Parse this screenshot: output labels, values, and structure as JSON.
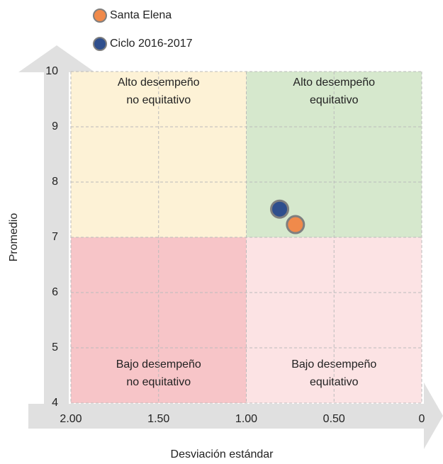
{
  "chart_data": {
    "type": "scatter",
    "xlabel": "Desviación estándar",
    "ylabel": "Promedio",
    "xlim": [
      2,
      0
    ],
    "ylim": [
      4,
      10
    ],
    "xticks": [
      {
        "value": 2,
        "label": "2.00"
      },
      {
        "value": 1.5,
        "label": "1.50"
      },
      {
        "value": 1,
        "label": "1.00"
      },
      {
        "value": 0.5,
        "label": "0.50"
      },
      0
    ],
    "yticks": [
      4,
      5,
      6,
      7,
      8,
      9,
      10
    ],
    "grid": true,
    "x_split": 1,
    "y_split": 7,
    "quadrants": [
      {
        "position": "top-left",
        "label": [
          "Alto desempeño",
          "no equitativo"
        ],
        "color": "#fdf2d6"
      },
      {
        "position": "top-right",
        "label": [
          "Alto desempeño",
          "equitativo"
        ],
        "color": "#d6e8cd"
      },
      {
        "position": "bottom-left",
        "label": [
          "Bajo desempeño",
          "no equitativo"
        ],
        "color": "#f7c5c8"
      },
      {
        "position": "bottom-right",
        "label": [
          "Bajo desempeño",
          "equitativo"
        ],
        "color": "#fce3e4"
      }
    ],
    "series": [
      {
        "name": "Santa Elena",
        "color": "#f08a4b",
        "x": [
          0.72
        ],
        "values": [
          7.23
        ]
      },
      {
        "name": "Ciclo 2016-2017",
        "color": "#2f4f8d",
        "x": [
          0.81
        ],
        "values": [
          7.51
        ]
      }
    ]
  }
}
